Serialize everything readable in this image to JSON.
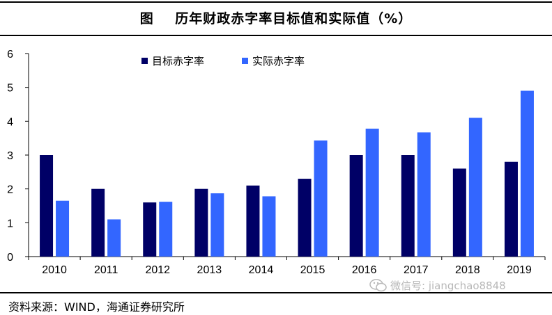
{
  "header": {
    "title": "图    历年财政赤字率目标值和实际值（%）"
  },
  "footer": {
    "source": "资料来源：WIND，海通证券研究所",
    "watermark_text": "微信号: jiangchao8848",
    "watermark_icon": "wechat-icon"
  },
  "colors": {
    "target": "#000066",
    "actual": "#3366ff",
    "axis": "#000000",
    "watermark": "#b8b8b8"
  },
  "chart_data": {
    "type": "bar",
    "title": "历年财政赤字率目标值和实际值（%）",
    "xlabel": "",
    "ylabel": "",
    "categories": [
      "2010",
      "2011",
      "2012",
      "2013",
      "2014",
      "2015",
      "2016",
      "2017",
      "2018",
      "2019"
    ],
    "series": [
      {
        "name": "目标赤字率",
        "values": [
          3.0,
          2.0,
          1.6,
          2.0,
          2.1,
          2.3,
          3.0,
          3.0,
          2.6,
          2.8
        ]
      },
      {
        "name": "实际赤字率",
        "values": [
          1.65,
          1.1,
          1.62,
          1.87,
          1.78,
          3.43,
          3.78,
          3.67,
          4.1,
          4.9
        ]
      }
    ],
    "ylim": [
      0,
      6
    ],
    "yticks": [
      "0",
      "1",
      "2",
      "3",
      "4",
      "5",
      "6"
    ],
    "grid": false,
    "legend_position": "top-left"
  }
}
